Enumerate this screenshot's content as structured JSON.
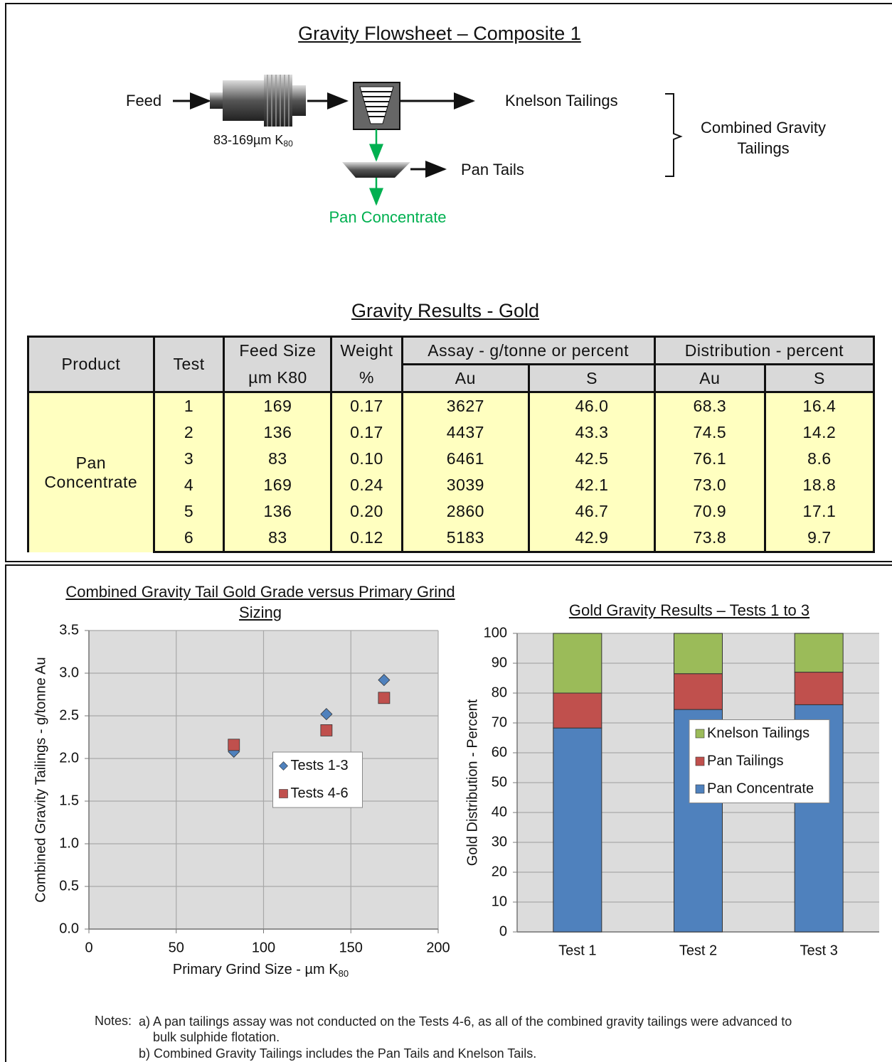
{
  "flowsheet": {
    "title": "Gravity Flowsheet – Composite 1",
    "feed": "Feed",
    "grind": "83-169µm K",
    "grind_sub": "80",
    "knelson_tailings": "Knelson Tailings",
    "pan_tails": "Pan Tails",
    "pan_concentrate": "Pan Concentrate",
    "combined": "Combined Gravity Tailings"
  },
  "table": {
    "title": "Gravity Results - Gold",
    "header": [
      "Product",
      "Test",
      "Feed Size",
      "Weight",
      "Assay - g/tonne or percent",
      "Distribution - percent"
    ],
    "subheader": [
      "µm K80",
      "%",
      "Au",
      "S",
      "Au",
      "S"
    ],
    "product": "Pan Concentrate",
    "rows": [
      [
        "1",
        "169",
        "0.17",
        "3627",
        "46.0",
        "68.3",
        "16.4"
      ],
      [
        "2",
        "136",
        "0.17",
        "4437",
        "43.3",
        "74.5",
        "14.2"
      ],
      [
        "3",
        "83",
        "0.10",
        "6461",
        "42.5",
        "76.1",
        "8.6"
      ],
      [
        "4",
        "169",
        "0.24",
        "3039",
        "42.1",
        "73.0",
        "18.8"
      ],
      [
        "5",
        "136",
        "0.20",
        "2860",
        "46.7",
        "70.9",
        "17.1"
      ],
      [
        "6",
        "83",
        "0.12",
        "5183",
        "42.9",
        "73.8",
        "9.7"
      ]
    ]
  },
  "chart_data": [
    {
      "type": "scatter",
      "title": "Combined Gravity Tail Gold Grade versus Primary Grind Sizing",
      "x_label": "Primary Grind Size - µm K",
      "x_label_sub": "80",
      "y_label": "Combined Gravity Tailings - g/tonne Au",
      "x": [
        169,
        136,
        83
      ],
      "series": [
        {
          "name": "Tests 1-3",
          "color": "#4f81bd",
          "marker": "diamond",
          "values": [
            2.92,
            2.52,
            2.08
          ]
        },
        {
          "name": "Tests 4-6",
          "color": "#c0504d",
          "marker": "square",
          "values": [
            2.71,
            2.33,
            2.16
          ]
        }
      ],
      "xlim": [
        0,
        200
      ],
      "xticks": [
        0,
        50,
        100,
        150,
        200
      ],
      "ylim": [
        0,
        3.5
      ],
      "yticks": [
        {
          "value": 0,
          "label": "0.0"
        },
        0.5,
        {
          "value": 1,
          "label": "1.0"
        },
        1.5,
        {
          "value": 2,
          "label": "2.0"
        },
        2.5,
        {
          "value": 3,
          "label": "3.0"
        },
        3.5
      ],
      "grid": true,
      "legend": "center"
    },
    {
      "type": "stacked_bar",
      "title": "Gold Gravity Results – Tests 1 to 3",
      "y_label": "Gold Distribution - Percent",
      "categories": [
        "Test 1",
        "Test 2",
        "Test 3"
      ],
      "series": [
        {
          "name": "Pan Concentrate",
          "color": "#4f81bd",
          "values": [
            68.3,
            74.5,
            76.1
          ]
        },
        {
          "name": "Pan Tailings",
          "color": "#c0504d",
          "values": [
            11.7,
            12.0,
            10.9
          ]
        },
        {
          "name": "Knelson Tailings",
          "color": "#9bbb59",
          "values": [
            20.0,
            13.5,
            13.0
          ]
        }
      ],
      "ylim": [
        0,
        100
      ],
      "yticks": [
        0,
        10,
        20,
        30,
        40,
        50,
        60,
        70,
        80,
        90,
        100
      ],
      "grid": true,
      "legend": "center right"
    }
  ],
  "notes": {
    "label": "Notes:",
    "a": "a) A pan tailings assay was not conducted on the Tests 4-6, as all of the combined gravity tailings were advanced to bulk sulphide flotation.",
    "b": "b) Combined Gravity Tailings includes the Pan Tails and Knelson Tails."
  }
}
